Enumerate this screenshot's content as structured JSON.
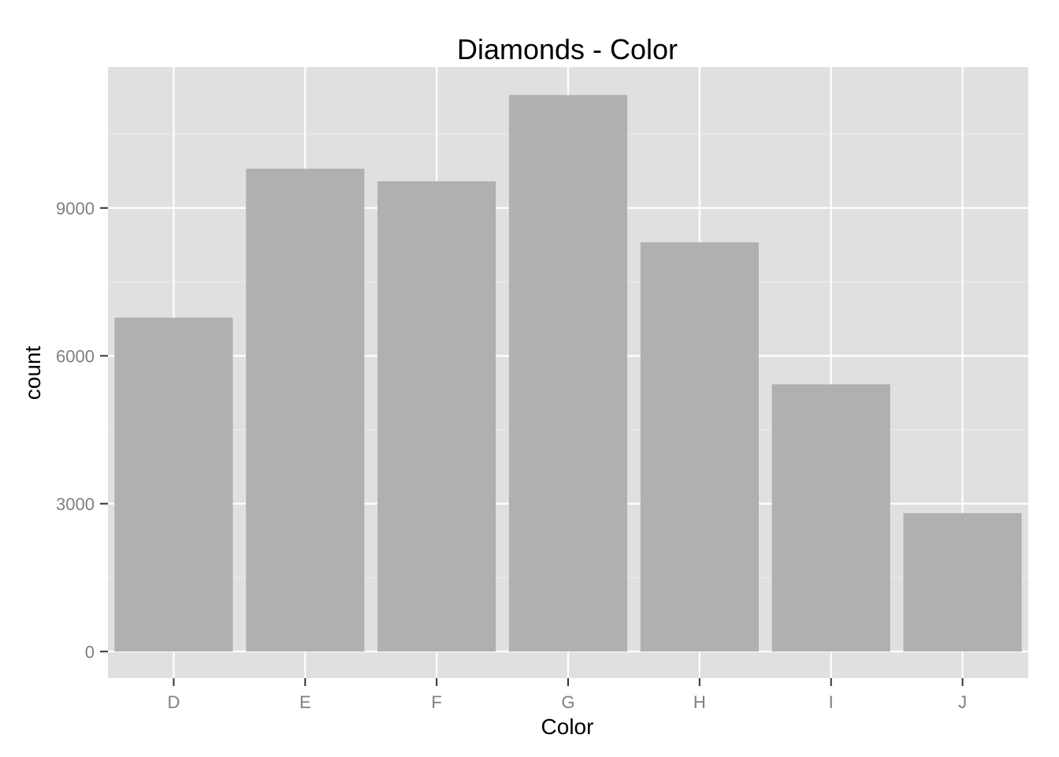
{
  "chart_data": {
    "type": "bar",
    "title": "Diamonds - Color",
    "xlabel": "Color",
    "ylabel": "count",
    "categories": [
      "D",
      "E",
      "F",
      "G",
      "H",
      "I",
      "J"
    ],
    "values": [
      6775,
      9797,
      9542,
      11292,
      8304,
      5422,
      2808
    ],
    "ylim": [
      -540,
      11860
    ],
    "yticks": [
      0,
      3000,
      6000,
      9000
    ],
    "ytick_labels": [
      "0",
      "3000",
      "6000",
      "9000"
    ],
    "grid": true,
    "legend": "none",
    "colors": {
      "bar": "#b0b0b0",
      "panel": "#e0e0e0",
      "grid_major": "#ffffff",
      "grid_minor": "#ebebeb",
      "tick_text": "#7f7f7f"
    }
  }
}
